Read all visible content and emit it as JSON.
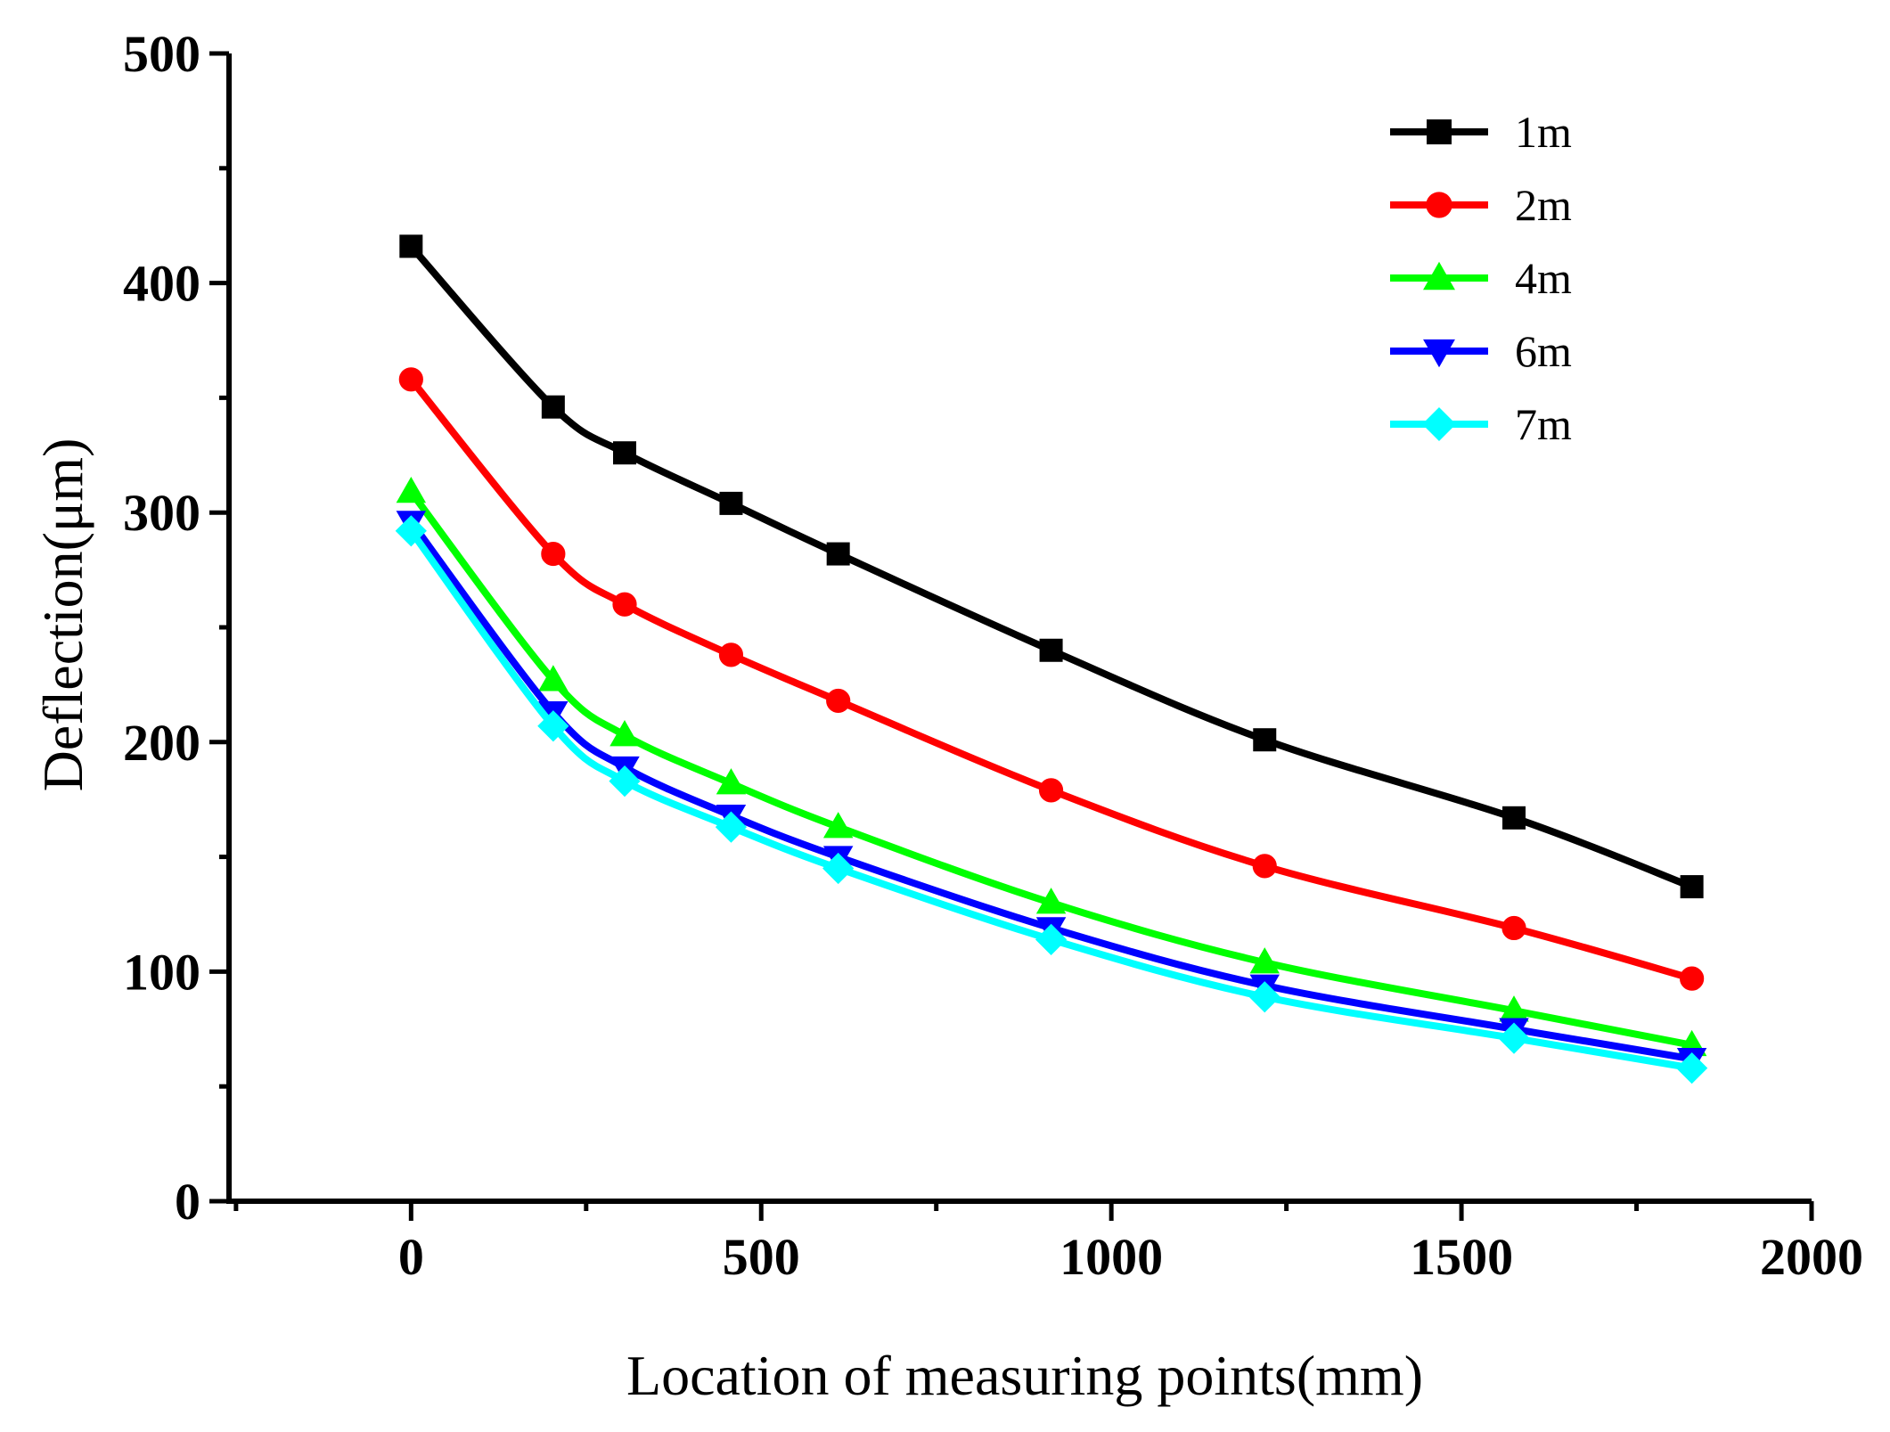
{
  "chart_data": {
    "type": "line",
    "title": "",
    "xlabel": "Location of measuring points(mm)",
    "ylabel": "Deflection(μm)",
    "xlim": [
      -260,
      2000
    ],
    "ylim": [
      0,
      500
    ],
    "xticks": [
      0,
      500,
      1000,
      1500,
      2000
    ],
    "xtick_labels": [
      "0",
      "500",
      "1000",
      "1500",
      "2000"
    ],
    "yticks": [
      0,
      100,
      200,
      300,
      400,
      500
    ],
    "ytick_labels": [
      "0",
      "100",
      "200",
      "300",
      "400",
      "500"
    ],
    "legend_position": "top-right",
    "x": [
      0,
      203,
      305,
      457,
      610,
      914,
      1219,
      1575,
      1829
    ],
    "series": [
      {
        "name": "1m",
        "color": "#000000",
        "marker": "square",
        "values": [
          416,
          346,
          326,
          304,
          282,
          240,
          201,
          167,
          137
        ]
      },
      {
        "name": "2m",
        "color": "#ff0000",
        "marker": "circle",
        "values": [
          358,
          282,
          260,
          238,
          218,
          179,
          146,
          119,
          97
        ]
      },
      {
        "name": "4m",
        "color": "#00ff00",
        "marker": "triangle-up",
        "values": [
          309,
          227,
          203,
          182,
          163,
          130,
          104,
          83,
          68
        ]
      },
      {
        "name": "6m",
        "color": "#0000ff",
        "marker": "triangle-down",
        "values": [
          296,
          213,
          189,
          168,
          150,
          119,
          94,
          75,
          62
        ]
      },
      {
        "name": "7m",
        "color": "#00ffff",
        "marker": "diamond",
        "values": [
          292,
          207,
          183,
          163,
          145,
          114,
          89,
          71,
          58
        ]
      }
    ]
  }
}
